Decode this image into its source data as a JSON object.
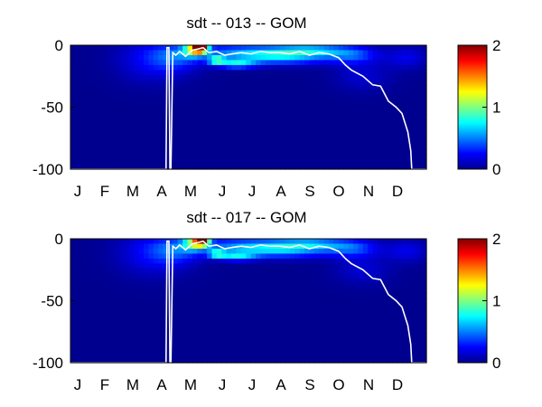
{
  "colors": {
    "background": "#ffffff",
    "field_base": "#00008f",
    "contour": "#ffffff",
    "axis": "#000000"
  },
  "colormap": "jet",
  "chart_data": [
    {
      "type": "heatmap",
      "title": "sdt -- 013 -- GOM",
      "xlabel": "",
      "ylabel": "",
      "x_tick_labels": [
        "J",
        "F",
        "M",
        "A",
        "M",
        "J",
        "J",
        "A",
        "S",
        "O",
        "N",
        "D"
      ],
      "y_tick_labels": [
        "0",
        "-50",
        "-100"
      ],
      "y_ticks": [
        0,
        -50,
        -100
      ],
      "xlim": [
        0,
        365
      ],
      "ylim": [
        -100,
        0
      ],
      "clim": [
        0,
        2
      ],
      "colorbar_tick_labels": [
        "0",
        "1",
        "2"
      ],
      "colorbar_ticks": [
        0,
        1,
        2
      ],
      "grid": false,
      "blooms": [
        {
          "day": 133,
          "depth": -2,
          "value": 1.95,
          "sd": 5,
          "sdz": 2.5
        },
        {
          "day": 127,
          "depth": -3,
          "value": 0.9,
          "sd": 8,
          "sdz": 4
        },
        {
          "day": 150,
          "depth": -12,
          "value": 0.85,
          "sd": 6,
          "sdz": 2
        },
        {
          "day": 170,
          "depth": -15,
          "value": 0.65,
          "sd": 14,
          "sdz": 2.5
        },
        {
          "day": 215,
          "depth": -10,
          "value": 0.55,
          "sd": 38,
          "sdz": 4
        },
        {
          "day": 185,
          "depth": -5,
          "value": 0.45,
          "sd": 45,
          "sdz": 4
        },
        {
          "day": 248,
          "depth": -4,
          "value": 0.5,
          "sd": 25,
          "sdz": 3
        },
        {
          "day": 110,
          "depth": -10,
          "value": 0.3,
          "sd": 18,
          "sdz": 7
        },
        {
          "day": 85,
          "depth": -12,
          "value": 0.25,
          "sd": 25,
          "sdz": 12
        },
        {
          "day": 290,
          "depth": -8,
          "value": 0.35,
          "sd": 18,
          "sdz": 5
        },
        {
          "day": 345,
          "depth": -10,
          "value": 0.2,
          "sd": 15,
          "sdz": 6
        },
        {
          "day": 300,
          "depth": -25,
          "value": 0.15,
          "sd": 20,
          "sdz": 8
        }
      ],
      "contour_days": [
        0,
        98,
        99,
        101,
        102,
        103,
        105,
        108,
        112,
        118,
        125,
        131,
        136,
        142,
        150,
        158,
        166,
        175,
        185,
        195,
        205,
        215,
        225,
        235,
        245,
        255,
        265,
        275,
        282,
        288,
        300,
        310,
        318,
        326,
        334,
        340,
        346,
        349,
        350,
        365
      ],
      "contour_depths": [
        -100,
        -100,
        -2,
        -2,
        -100,
        -100,
        -6,
        -8,
        -5,
        -9,
        -4,
        -3,
        -2,
        -6,
        -5,
        -8,
        -7,
        -6,
        -7,
        -5,
        -6,
        -6,
        -7,
        -5,
        -8,
        -6,
        -7,
        -10,
        -16,
        -20,
        -25,
        -32,
        -33,
        -45,
        -50,
        -55,
        -70,
        -85,
        -100,
        -100
      ]
    },
    {
      "type": "heatmap",
      "title": "sdt -- 017 -- GOM",
      "xlabel": "",
      "ylabel": "",
      "x_tick_labels": [
        "J",
        "F",
        "M",
        "A",
        "M",
        "J",
        "J",
        "A",
        "S",
        "O",
        "N",
        "D"
      ],
      "y_tick_labels": [
        "0",
        "-50",
        "-100"
      ],
      "y_ticks": [
        0,
        -50,
        -100
      ],
      "xlim": [
        0,
        365
      ],
      "ylim": [
        -100,
        0
      ],
      "clim": [
        0,
        2
      ],
      "colorbar_tick_labels": [
        "0",
        "1",
        "2"
      ],
      "colorbar_ticks": [
        0,
        1,
        2
      ],
      "grid": false,
      "blooms": [
        {
          "day": 135,
          "depth": -2,
          "value": 1.6,
          "sd": 5,
          "sdz": 2.5
        },
        {
          "day": 127,
          "depth": -3,
          "value": 0.8,
          "sd": 8,
          "sdz": 4
        },
        {
          "day": 150,
          "depth": -12,
          "value": 0.75,
          "sd": 6,
          "sdz": 2
        },
        {
          "day": 170,
          "depth": -14,
          "value": 0.6,
          "sd": 14,
          "sdz": 2.5
        },
        {
          "day": 215,
          "depth": -10,
          "value": 0.5,
          "sd": 38,
          "sdz": 4
        },
        {
          "day": 185,
          "depth": -5,
          "value": 0.45,
          "sd": 45,
          "sdz": 4
        },
        {
          "day": 248,
          "depth": -4,
          "value": 0.45,
          "sd": 25,
          "sdz": 3
        },
        {
          "day": 110,
          "depth": -10,
          "value": 0.3,
          "sd": 18,
          "sdz": 7
        },
        {
          "day": 85,
          "depth": -12,
          "value": 0.25,
          "sd": 25,
          "sdz": 12
        },
        {
          "day": 290,
          "depth": -8,
          "value": 0.35,
          "sd": 18,
          "sdz": 5
        },
        {
          "day": 345,
          "depth": -10,
          "value": 0.2,
          "sd": 15,
          "sdz": 6
        },
        {
          "day": 300,
          "depth": -25,
          "value": 0.15,
          "sd": 20,
          "sdz": 8
        }
      ],
      "contour_days": [
        0,
        98,
        99,
        101,
        102,
        103,
        105,
        108,
        112,
        118,
        125,
        131,
        136,
        142,
        150,
        158,
        166,
        175,
        185,
        195,
        205,
        215,
        225,
        235,
        245,
        255,
        265,
        275,
        282,
        288,
        300,
        310,
        318,
        326,
        334,
        340,
        346,
        349,
        350,
        365
      ],
      "contour_depths": [
        -100,
        -100,
        -2,
        -2,
        -100,
        -100,
        -6,
        -8,
        -5,
        -9,
        -4,
        -3,
        -2,
        -6,
        -5,
        -8,
        -7,
        -6,
        -7,
        -5,
        -6,
        -6,
        -7,
        -5,
        -8,
        -6,
        -7,
        -10,
        -16,
        -20,
        -25,
        -32,
        -33,
        -45,
        -50,
        -55,
        -70,
        -85,
        -100,
        -100
      ]
    }
  ]
}
